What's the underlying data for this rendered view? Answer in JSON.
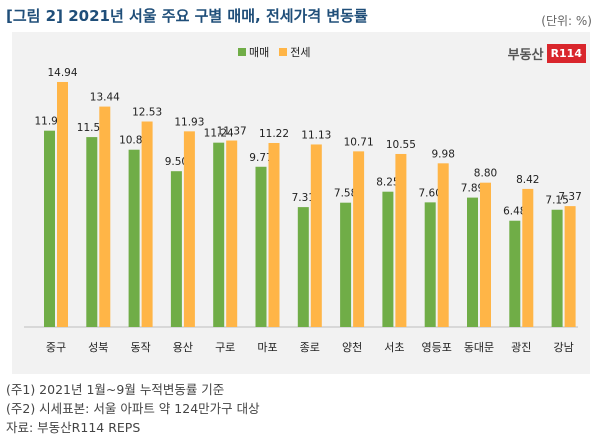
{
  "title": "[그림 2] 2021년 서울 주요 구별 매매, 전세가격 변동률",
  "unit": "(단위: %)",
  "logo": {
    "text": "부동산",
    "mark": "R114"
  },
  "colors": {
    "sale": "#70ad47",
    "jeonse": "#ffb547"
  },
  "notes": [
    "(주1) 2021년 1월~9월 누적변동률 기준",
    "(주2) 시세표본: 서울 아파트 약 124만가구 대상",
    "자료: 부동산R114 REPS"
  ],
  "chart_data": {
    "type": "bar",
    "title": "[그림 2] 2021년 서울 주요 구별 매매, 전세가격 변동률",
    "categories": [
      "중구",
      "성북",
      "동작",
      "용산",
      "구로",
      "마포",
      "종로",
      "양천",
      "서초",
      "영등포",
      "동대문",
      "광진",
      "강남"
    ],
    "series": [
      {
        "name": "매매",
        "color": "#70ad47",
        "values": [
          11.97,
          11.58,
          10.81,
          9.5,
          11.24,
          9.77,
          7.31,
          7.58,
          8.25,
          7.6,
          7.89,
          6.48,
          7.15
        ]
      },
      {
        "name": "전세",
        "color": "#ffb547",
        "values": [
          14.94,
          13.44,
          12.53,
          11.93,
          11.37,
          11.22,
          11.13,
          10.71,
          10.55,
          9.98,
          8.8,
          8.42,
          7.37
        ]
      }
    ],
    "ylim": [
      0,
      16
    ],
    "legend": "top-center",
    "grid": false
  }
}
